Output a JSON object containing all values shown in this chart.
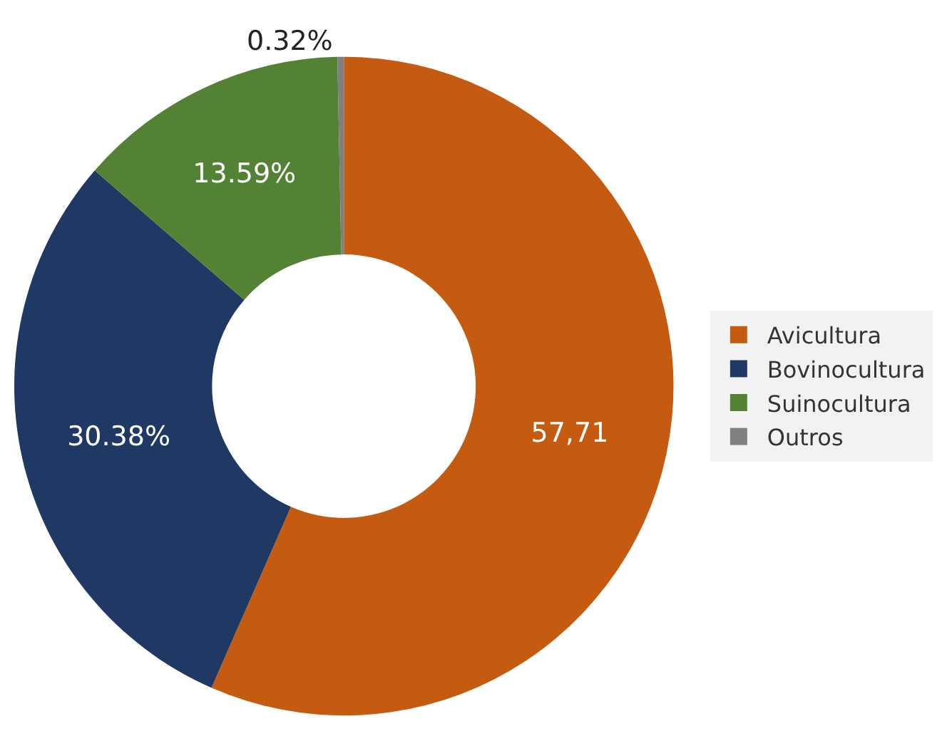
{
  "chart_data": {
    "type": "donut",
    "categories": [
      "Avicultura",
      "Bovinocultura",
      "Suinocultura",
      "Outros"
    ],
    "values": [
      57.71,
      30.38,
      13.59,
      0.32
    ],
    "value_labels": [
      "57,71",
      "30.38%",
      "13.59%",
      "0.32%"
    ],
    "colors": [
      "#c55a11",
      "#1f3864",
      "#548235",
      "#7f7f7f"
    ],
    "legend": "right"
  }
}
